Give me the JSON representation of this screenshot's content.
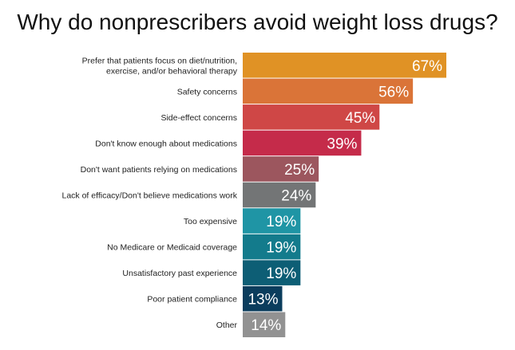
{
  "chart_data": {
    "type": "bar",
    "orientation": "horizontal",
    "title": "Why do nonprescribers avoid weight loss drugs?",
    "categories": [
      [
        "Prefer that patients focus on diet/nutrition,",
        "exercise, and/or behavioral therapy"
      ],
      [
        "Safety concerns"
      ],
      [
        "Side-effect concerns"
      ],
      [
        "Don't know enough about medications"
      ],
      [
        "Don't want patients relying on medications"
      ],
      [
        "Lack of efficacy/Don't believe medications work"
      ],
      [
        "Too expensive"
      ],
      [
        "No Medicare or Medicaid coverage"
      ],
      [
        "Unsatisfactory past experience"
      ],
      [
        "Poor patient compliance"
      ],
      [
        "Other"
      ]
    ],
    "values": [
      67,
      56,
      45,
      39,
      25,
      24,
      19,
      19,
      19,
      13,
      14
    ],
    "value_labels": [
      "67%",
      "56%",
      "45%",
      "39%",
      "25%",
      "24%",
      "19%",
      "19%",
      "19%",
      "13%",
      "14%"
    ],
    "colors": [
      "#e09225",
      "#da7438",
      "#cf4746",
      "#c52b4a",
      "#9c565e",
      "#737576",
      "#1f95a5",
      "#137b8c",
      "#0d5e75",
      "#0b3d5d",
      "#929292"
    ],
    "xlim": [
      0,
      67
    ],
    "grid": false,
    "legend": "none"
  }
}
